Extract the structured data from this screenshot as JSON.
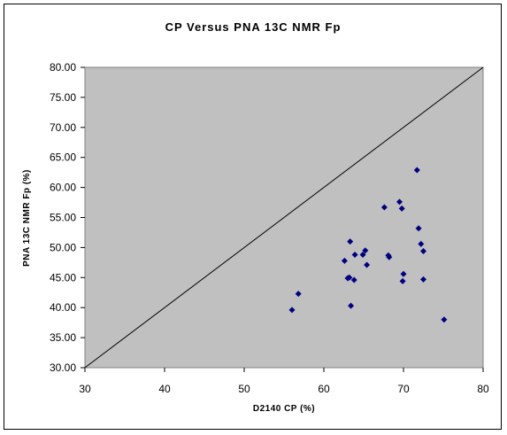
{
  "chart_data": {
    "type": "scatter",
    "title": "CP Versus PNA 13C NMR Fp",
    "xlabel": "D2140 CP (%)",
    "ylabel": "PNA 13C NMR Fp (%)",
    "xlim": [
      30,
      80
    ],
    "ylim": [
      30,
      80
    ],
    "x_ticks": [
      "30",
      "40",
      "50",
      "60",
      "70",
      "80"
    ],
    "y_ticks": [
      "30.00",
      "35.00",
      "40.00",
      "45.00",
      "50.00",
      "55.00",
      "60.00",
      "65.00",
      "70.00",
      "75.00",
      "80.00"
    ],
    "grid": false,
    "legend": "none",
    "plot_background": "#c0c0c0",
    "marker_color": "#000080",
    "reference_line": {
      "x": [
        30,
        80
      ],
      "y": [
        30,
        80
      ]
    },
    "points": [
      [
        56.0,
        39.6
      ],
      [
        56.8,
        42.3
      ],
      [
        62.6,
        47.8
      ],
      [
        63.0,
        44.9
      ],
      [
        63.2,
        45.0
      ],
      [
        63.3,
        51.0
      ],
      [
        63.4,
        40.3
      ],
      [
        63.8,
        44.6
      ],
      [
        63.9,
        48.8
      ],
      [
        64.9,
        48.8
      ],
      [
        65.2,
        49.5
      ],
      [
        65.4,
        47.1
      ],
      [
        67.6,
        56.7
      ],
      [
        68.1,
        48.7
      ],
      [
        68.2,
        48.4
      ],
      [
        69.5,
        57.6
      ],
      [
        69.8,
        56.5
      ],
      [
        69.9,
        44.4
      ],
      [
        70.0,
        45.6
      ],
      [
        71.7,
        62.9
      ],
      [
        71.9,
        53.2
      ],
      [
        72.2,
        50.6
      ],
      [
        72.5,
        49.4
      ],
      [
        72.5,
        44.7
      ],
      [
        75.1,
        38.0
      ]
    ]
  }
}
